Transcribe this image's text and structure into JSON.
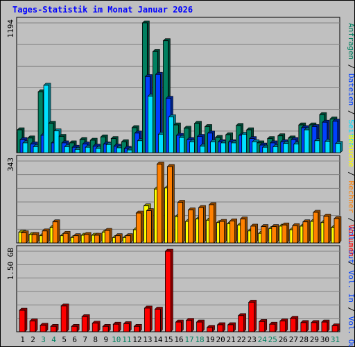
{
  "title": "Tages-Statistik im Monat Januar 2026",
  "colors": {
    "hits": "#008060",
    "files": "#0040ff",
    "pages": "#00e0ff",
    "visits": "#ffff00",
    "sites": "#ff8000",
    "kbytes": "#ff0000",
    "weekend": "#008060",
    "text": "#000000"
  },
  "chart_data": [
    {
      "type": "bar",
      "title": "Tages-Statistik im Monat Januar 2026",
      "categories": [
        "1",
        "2",
        "3",
        "4",
        "5",
        "6",
        "7",
        "8",
        "9",
        "10",
        "11",
        "12",
        "13",
        "14",
        "15",
        "16",
        "17",
        "18",
        "19",
        "20",
        "21",
        "22",
        "23",
        "24",
        "25",
        "26",
        "27",
        "28",
        "29",
        "30",
        "31"
      ],
      "weekend_days": [
        "3",
        "4",
        "10",
        "11",
        "17",
        "18",
        "24",
        "25",
        "31"
      ],
      "ylim": [
        0,
        1194
      ],
      "max_label": "1194",
      "legend": [
        "Anfragen",
        "Dateien",
        "Seiten"
      ],
      "legend_separator": "/",
      "series": [
        {
          "name": "Anfragen",
          "values": [
            210,
            135,
            560,
            270,
            150,
            90,
            120,
            115,
            145,
            130,
            100,
            230,
            1194,
            930,
            1030,
            255,
            225,
            270,
            240,
            140,
            165,
            250,
            210,
            90,
            130,
            155,
            135,
            255,
            255,
            350,
            310
          ]
        },
        {
          "name": "Dateien",
          "values": [
            120,
            80,
            160,
            90,
            90,
            50,
            80,
            60,
            80,
            60,
            40,
            180,
            700,
            720,
            500,
            160,
            120,
            150,
            180,
            100,
            100,
            160,
            130,
            70,
            90,
            100,
            120,
            230,
            240,
            280,
            290
          ]
        },
        {
          "name": "Seiten",
          "values": [
            90,
            55,
            620,
            200,
            55,
            30,
            50,
            40,
            75,
            45,
            25,
            110,
            520,
            170,
            330,
            140,
            100,
            60,
            100,
            90,
            90,
            170,
            100,
            50,
            55,
            85,
            80,
            210,
            110,
            105,
            85
          ]
        }
      ]
    },
    {
      "type": "bar",
      "ylim": [
        0,
        343
      ],
      "max_label": "343",
      "legend": [
        "Besuche",
        "Rechner",
        "Vol. Out"
      ],
      "legend_separator": "/",
      "series": [
        {
          "name": "Besuche",
          "values": [
            45,
            35,
            30,
            65,
            30,
            22,
            32,
            32,
            45,
            22,
            22,
            55,
            155,
            225,
            230,
            110,
            90,
            100,
            95,
            85,
            80,
            75,
            50,
            40,
            60,
            70,
            55,
            70,
            90,
            85,
            65
          ]
        },
        {
          "name": "Rechner",
          "values": [
            42,
            35,
            50,
            88,
            40,
            30,
            35,
            32,
            52,
            30,
            30,
            125,
            135,
            330,
            320,
            170,
            138,
            148,
            160,
            90,
            92,
            100,
            70,
            68,
            68,
            75,
            72,
            88,
            128,
            112,
            102
          ]
        }
      ]
    },
    {
      "type": "bar",
      "ylim": [
        0,
        1.5
      ],
      "max_label": "1.50 GB",
      "legend": [
        "Volumen",
        "Vol. In",
        "Vol. Out"
      ],
      "legend_separator": "/",
      "series": [
        {
          "name": "Volumen",
          "values": [
            0.4,
            0.2,
            0.12,
            0.1,
            0.48,
            0.1,
            0.28,
            0.16,
            0.1,
            0.14,
            0.15,
            0.1,
            0.44,
            0.42,
            1.5,
            0.18,
            0.21,
            0.18,
            0.08,
            0.13,
            0.13,
            0.3,
            0.55,
            0.19,
            0.14,
            0.2,
            0.25,
            0.17,
            0.17,
            0.18,
            0.11
          ]
        }
      ]
    }
  ]
}
